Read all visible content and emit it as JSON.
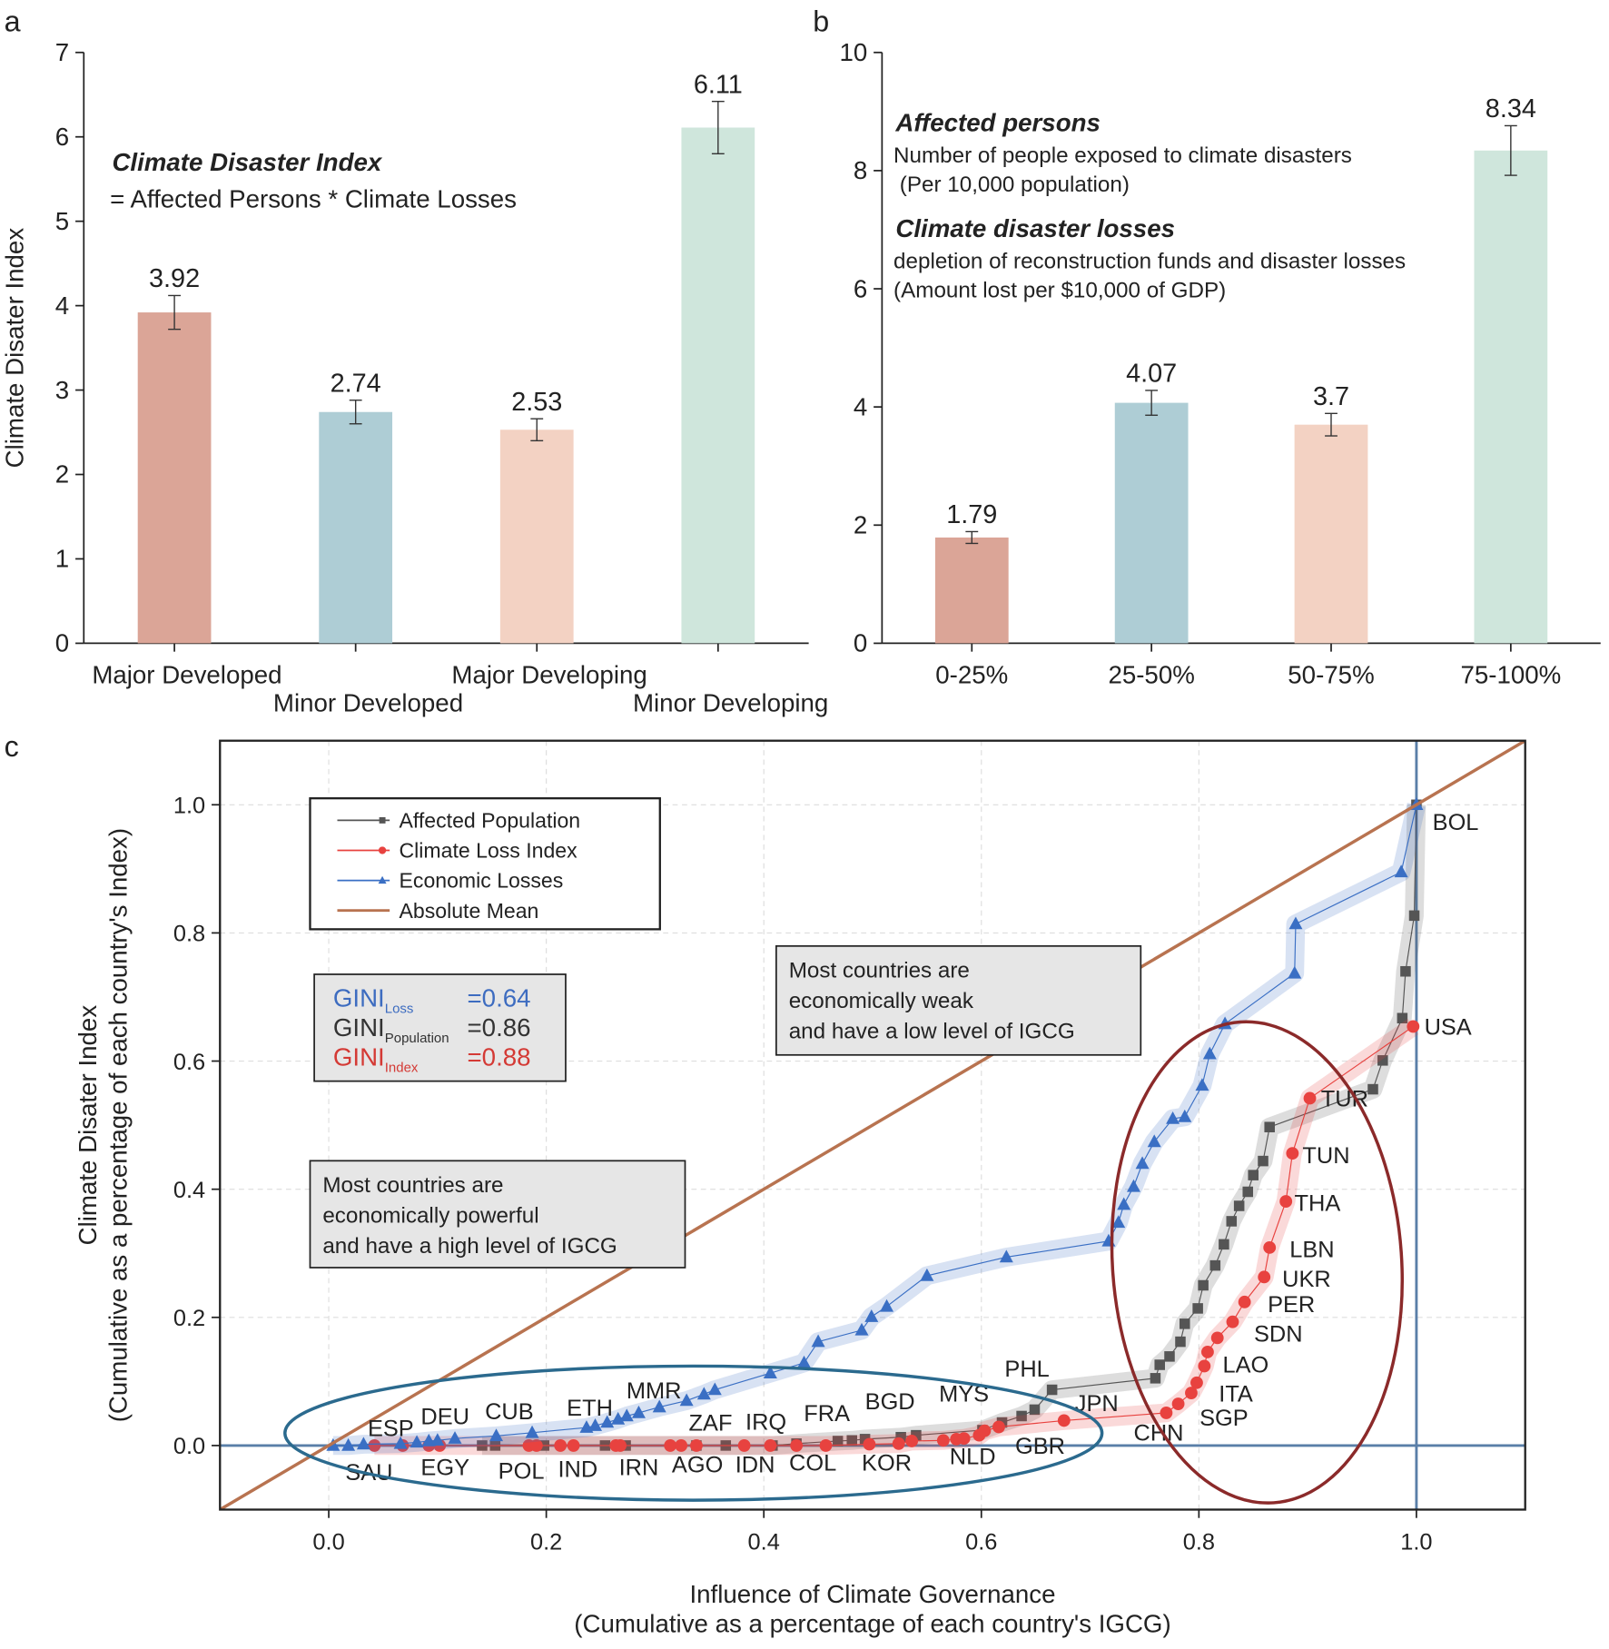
{
  "chart_data": [
    {
      "panel": "a",
      "type": "bar",
      "categories": [
        "Major Developed",
        "Minor Developed",
        "Major Developing",
        "Minor Developing"
      ],
      "values": [
        3.92,
        2.74,
        2.53,
        6.11
      ],
      "errors": [
        0.2,
        0.14,
        0.13,
        0.31
      ],
      "colors": [
        "#dba597",
        "#aecdd5",
        "#f3d2c3",
        "#cfe6dc"
      ],
      "ylabel": "Climate Disater Index",
      "ylim": [
        0,
        7
      ],
      "yticks": [
        0,
        1,
        2,
        3,
        4,
        5,
        6,
        7
      ],
      "notes": [
        {
          "title": "Climate Disaster Index",
          "lines": [
            "= Affected Persons * Climate Losses"
          ]
        }
      ]
    },
    {
      "panel": "b",
      "type": "bar",
      "categories": [
        "0-25%",
        "25-50%",
        "50-75%",
        "75-100%"
      ],
      "values": [
        1.79,
        4.07,
        3.7,
        8.34
      ],
      "errors": [
        0.1,
        0.21,
        0.19,
        0.42
      ],
      "colors": [
        "#dba597",
        "#aecdd5",
        "#f3d2c3",
        "#cfe6dc"
      ],
      "ylim": [
        0,
        10
      ],
      "yticks": [
        0,
        2,
        4,
        6,
        8,
        10
      ],
      "notes": [
        {
          "title": "Affected persons",
          "lines": [
            "Number of people exposed to climate disasters",
            " (Per 10,000 population)"
          ]
        },
        {
          "title": "Climate disaster losses",
          "lines": [
            "depletion of reconstruction funds and disaster losses",
            "(Amount lost per $10,000 of GDP)"
          ]
        }
      ]
    },
    {
      "panel": "c",
      "type": "line",
      "xlabel": [
        "Influence of Climate Governance",
        "(Cumulative as a percentage of each country's IGCG)"
      ],
      "ylabel": [
        "Climate Disater Index",
        "(Cumulative as a percentage of each country's Index)"
      ],
      "xlim": [
        -0.1,
        1.1
      ],
      "ylim": [
        -0.1,
        1.1
      ],
      "xticks": [
        {
          "value": 0,
          "label": "0.0"
        },
        0.2,
        0.4,
        0.6,
        0.8,
        {
          "value": 1,
          "label": "1.0"
        }
      ],
      "yticks": [
        {
          "value": 0,
          "label": "0.0"
        },
        0.2,
        0.4,
        0.6,
        0.8,
        {
          "value": 1,
          "label": "1.0"
        }
      ],
      "grid": true,
      "hlines": [
        0
      ],
      "vlines": [
        1
      ],
      "legend": "upper left",
      "series": [
        {
          "name": "Affected Population",
          "color": "#555555",
          "marker": "square",
          "x": [
            0.141,
            0.153,
            0.198,
            0.254,
            0.273,
            0.338,
            0.365,
            0.408,
            0.43,
            0.468,
            0.481,
            0.493,
            0.526,
            0.54,
            0.601,
            0.619,
            0.637,
            0.649,
            0.665,
            0.76,
            0.764,
            0.773,
            0.783,
            0.787,
            0.799,
            0.804,
            0.815,
            0.823,
            0.83,
            0.837,
            0.845,
            0.85,
            0.859,
            0.865,
            0.96,
            0.969,
            0.987,
            0.99,
            0.998,
            1.0
          ],
          "values": [
            0,
            0,
            0,
            0,
            0,
            0,
            0,
            0,
            0.003,
            0.007,
            0.008,
            0.01,
            0.013,
            0.016,
            0.024,
            0.036,
            0.046,
            0.056,
            0.087,
            0.105,
            0.126,
            0.139,
            0.162,
            0.19,
            0.214,
            0.25,
            0.281,
            0.314,
            0.35,
            0.374,
            0.396,
            0.422,
            0.444,
            0.497,
            0.556,
            0.601,
            0.667,
            0.74,
            0.827,
            1.0
          ]
        },
        {
          "name": "Climate Loss Index",
          "color": "#e8423f",
          "marker": "circle",
          "x": [
            0.042,
            0.068,
            0.092,
            0.102,
            0.184,
            0.191,
            0.213,
            0.225,
            0.264,
            0.268,
            0.314,
            0.324,
            0.338,
            0.382,
            0.406,
            0.43,
            0.457,
            0.497,
            0.524,
            0.536,
            0.565,
            0.577,
            0.584,
            0.598,
            0.603,
            0.616,
            0.676,
            0.77,
            0.781,
            0.793,
            0.798,
            0.805,
            0.808,
            0.817,
            0.831,
            0.842,
            0.86,
            0.865,
            0.88,
            0.886,
            0.902,
            0.997
          ],
          "values": [
            0,
            0,
            0,
            0,
            0,
            0,
            0,
            0,
            0,
            0,
            0,
            0,
            0,
            0,
            0,
            0,
            0,
            0.002,
            0.003,
            0.007,
            0.008,
            0.01,
            0.011,
            0.016,
            0.023,
            0.029,
            0.039,
            0.051,
            0.065,
            0.082,
            0.098,
            0.124,
            0.146,
            0.168,
            0.193,
            0.224,
            0.263,
            0.309,
            0.381,
            0.456,
            0.542,
            0.654
          ]
        },
        {
          "name": "Economic Losses",
          "color": "#3a6fc4",
          "marker": "triangle",
          "x": [
            0.004,
            0.018,
            0.032,
            0.066,
            0.081,
            0.092,
            0.1,
            0.116,
            0.154,
            0.187,
            0.237,
            0.245,
            0.256,
            0.266,
            0.274,
            0.285,
            0.304,
            0.329,
            0.345,
            0.355,
            0.406,
            0.437,
            0.45,
            0.49,
            0.499,
            0.513,
            0.55,
            0.623,
            0.717,
            0.726,
            0.731,
            0.74,
            0.748,
            0.759,
            0.776,
            0.787,
            0.803,
            0.81,
            0.824,
            0.888,
            0.889,
            0.986,
            1.0
          ],
          "values": [
            0,
            0,
            0.002,
            0.003,
            0.005,
            0.007,
            0.008,
            0.011,
            0.015,
            0.02,
            0.028,
            0.031,
            0.036,
            0.041,
            0.046,
            0.051,
            0.06,
            0.07,
            0.08,
            0.087,
            0.113,
            0.129,
            0.162,
            0.18,
            0.201,
            0.217,
            0.265,
            0.294,
            0.319,
            0.348,
            0.376,
            0.404,
            0.44,
            0.474,
            0.51,
            0.513,
            0.562,
            0.611,
            0.658,
            0.737,
            0.814,
            0.895,
            1.0
          ]
        },
        {
          "name": "Absolute Mean",
          "color": "#b87350",
          "marker": "none",
          "x": [
            -0.1,
            1.1
          ],
          "values": [
            -0.1,
            1.1
          ]
        }
      ],
      "labels": [
        {
          "text": "BOL",
          "x": 1.036,
          "y": 0.974
        },
        {
          "text": "USA",
          "x": 1.029,
          "y": 0.654
        },
        {
          "text": "TUR",
          "x": 0.934,
          "y": 0.542
        },
        {
          "text": "TUN",
          "x": 0.917,
          "y": 0.454
        },
        {
          "text": "THA",
          "x": 0.909,
          "y": 0.379
        },
        {
          "text": "LBN",
          "x": 0.904,
          "y": 0.307
        },
        {
          "text": "UKR",
          "x": 0.899,
          "y": 0.261
        },
        {
          "text": "PER",
          "x": 0.885,
          "y": 0.221
        },
        {
          "text": "SDN",
          "x": 0.873,
          "y": 0.175
        },
        {
          "text": "LAO",
          "x": 0.843,
          "y": 0.127
        },
        {
          "text": "ITA",
          "x": 0.834,
          "y": 0.082
        },
        {
          "text": "SGP",
          "x": 0.823,
          "y": 0.044
        },
        {
          "text": "CHN",
          "x": 0.763,
          "y": 0.021
        },
        {
          "text": "JPN",
          "x": 0.706,
          "y": 0.067
        },
        {
          "text": "PHL",
          "x": 0.642,
          "y": 0.121
        },
        {
          "text": "GBR",
          "x": 0.654,
          "y": 0.0
        },
        {
          "text": "MYS",
          "x": 0.584,
          "y": 0.082
        },
        {
          "text": "NLD",
          "x": 0.592,
          "y": -0.016
        },
        {
          "text": "BGD",
          "x": 0.516,
          "y": 0.07
        },
        {
          "text": "KOR",
          "x": 0.513,
          "y": -0.026
        },
        {
          "text": "FRA",
          "x": 0.458,
          "y": 0.051
        },
        {
          "text": "COL",
          "x": 0.445,
          "y": -0.026
        },
        {
          "text": "IRQ",
          "x": 0.402,
          "y": 0.038
        },
        {
          "text": "IDN",
          "x": 0.392,
          "y": -0.029
        },
        {
          "text": "ZAF",
          "x": 0.351,
          "y": 0.036
        },
        {
          "text": "AGO",
          "x": 0.339,
          "y": -0.029
        },
        {
          "text": "MMR",
          "x": 0.299,
          "y": 0.087
        },
        {
          "text": "IRN",
          "x": 0.285,
          "y": -0.033
        },
        {
          "text": "ETH",
          "x": 0.24,
          "y": 0.06
        },
        {
          "text": "IND",
          "x": 0.229,
          "y": -0.036
        },
        {
          "text": "CUB",
          "x": 0.166,
          "y": 0.054
        },
        {
          "text": "POL",
          "x": 0.177,
          "y": -0.039
        },
        {
          "text": "DEU",
          "x": 0.107,
          "y": 0.046
        },
        {
          "text": "EGY",
          "x": 0.107,
          "y": -0.033
        },
        {
          "text": "ESP",
          "x": 0.057,
          "y": 0.028
        },
        {
          "text": "SAU",
          "x": 0.037,
          "y": -0.041
        }
      ],
      "gini": [
        {
          "label": "GINI",
          "sub": "Loss",
          "value": "=0.64",
          "color": "#3d6cc0"
        },
        {
          "label": "GINI",
          "sub": "Population",
          "value": "=0.86",
          "color": "#333333"
        },
        {
          "label": "GINI",
          "sub": "Index",
          "value": "=0.88",
          "color": "#d43a35"
        }
      ],
      "notes": [
        [
          "Most countries are",
          "economically weak",
          "and have a low level of IGCG"
        ],
        [
          "Most countries are",
          "economically powerful",
          "and have a high level of IGCG"
        ]
      ]
    }
  ]
}
